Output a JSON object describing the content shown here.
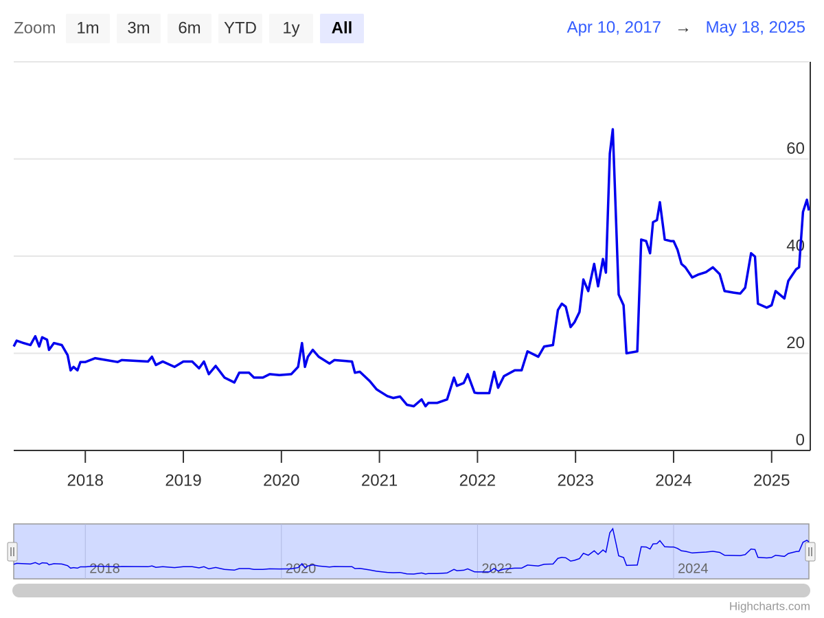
{
  "range_selector": {
    "label": "Zoom",
    "buttons": [
      "1m",
      "3m",
      "6m",
      "YTD",
      "1y",
      "All"
    ],
    "selected": "All"
  },
  "date_range": {
    "from": "Apr 10, 2017",
    "arrow": "→",
    "to": "May 18, 2025"
  },
  "chart_data": {
    "type": "line",
    "x": [
      2017.27,
      2017.3,
      2017.37,
      2017.44,
      2017.49,
      2017.53,
      2017.56,
      2017.61,
      2017.63,
      2017.68,
      2017.76,
      2017.82,
      2017.85,
      2017.88,
      2017.92,
      2017.95,
      2018.0,
      2018.1,
      2018.33,
      2018.37,
      2018.64,
      2018.68,
      2018.72,
      2018.79,
      2018.91,
      2019.0,
      2019.09,
      2019.16,
      2019.21,
      2019.26,
      2019.33,
      2019.42,
      2019.52,
      2019.57,
      2019.67,
      2019.72,
      2019.81,
      2019.88,
      2019.98,
      2020.1,
      2020.17,
      2020.21,
      2020.24,
      2020.27,
      2020.32,
      2020.38,
      2020.49,
      2020.54,
      2020.66,
      2020.72,
      2020.75,
      2020.8,
      2020.9,
      2020.97,
      2021.0,
      2021.08,
      2021.14,
      2021.21,
      2021.28,
      2021.35,
      2021.43,
      2021.47,
      2021.5,
      2021.59,
      2021.69,
      2021.76,
      2021.79,
      2021.86,
      2021.9,
      2021.97,
      2022.0,
      2022.12,
      2022.17,
      2022.21,
      2022.27,
      2022.38,
      2022.45,
      2022.51,
      2022.62,
      2022.68,
      2022.77,
      2022.82,
      2022.86,
      2022.9,
      2022.95,
      2022.99,
      2023.04,
      2023.08,
      2023.13,
      2023.19,
      2023.23,
      2023.28,
      2023.31,
      2023.35,
      2023.38,
      2023.4,
      2023.44,
      2023.49,
      2023.52,
      2023.63,
      2023.67,
      2023.72,
      2023.76,
      2023.79,
      2023.83,
      2023.86,
      2023.91,
      2023.97,
      2024.0,
      2024.04,
      2024.08,
      2024.12,
      2024.19,
      2024.25,
      2024.33,
      2024.4,
      2024.47,
      2024.52,
      2024.61,
      2024.68,
      2024.73,
      2024.79,
      2024.83,
      2024.86,
      2024.95,
      2025.0,
      2025.04,
      2025.13,
      2025.17,
      2025.25,
      2025.28,
      2025.32,
      2025.36,
      2025.38
    ],
    "series": [
      {
        "color": "#0000ee",
        "values": [
          21.4,
          22.6,
          22.1,
          21.7,
          23.5,
          21.4,
          23.3,
          22.8,
          20.7,
          22.1,
          21.7,
          19.6,
          16.5,
          17.2,
          16.5,
          18.2,
          18.2,
          19.0,
          18.2,
          18.6,
          18.3,
          19.3,
          17.6,
          18.3,
          17.2,
          18.3,
          18.3,
          16.9,
          18.3,
          15.7,
          17.4,
          15.0,
          14.0,
          16.0,
          16.0,
          15.0,
          15.0,
          15.7,
          15.5,
          15.7,
          17.2,
          22.1,
          17.2,
          19.3,
          20.7,
          19.3,
          17.9,
          18.6,
          18.4,
          18.3,
          16.0,
          16.2,
          14.3,
          12.6,
          12.2,
          11.2,
          10.8,
          11.1,
          9.4,
          9.1,
          10.5,
          9.1,
          9.8,
          9.8,
          10.5,
          15.0,
          13.3,
          13.9,
          15.7,
          11.9,
          11.8,
          11.8,
          16.2,
          12.9,
          15.3,
          16.5,
          16.5,
          20.4,
          19.3,
          21.4,
          21.7,
          28.9,
          30.2,
          29.6,
          25.4,
          26.4,
          28.5,
          35.2,
          32.8,
          38.4,
          33.8,
          39.4,
          36.6,
          61.1,
          66.1,
          54.8,
          32.1,
          29.9,
          20.0,
          20.4,
          43.4,
          43.1,
          40.6,
          47.0,
          47.4,
          51.1,
          43.4,
          43.1,
          43.1,
          41.3,
          38.4,
          37.7,
          35.6,
          36.2,
          36.7,
          37.7,
          36.3,
          32.8,
          32.5,
          32.3,
          33.5,
          40.6,
          39.9,
          30.2,
          29.4,
          29.9,
          32.8,
          31.3,
          34.9,
          37.3,
          37.7,
          49.1,
          51.6,
          49.4
        ]
      }
    ],
    "xlim": [
      2017.27,
      2025.38
    ],
    "xticks": [
      2018,
      2019,
      2020,
      2021,
      2022,
      2023,
      2024,
      2025
    ],
    "ylim": [
      0,
      80
    ],
    "yticks": [
      0,
      20,
      40,
      60
    ],
    "grid": true
  },
  "navigator": {
    "xticks": [
      2018,
      2020,
      2022,
      2024
    ]
  },
  "credits": "Highcharts.com"
}
